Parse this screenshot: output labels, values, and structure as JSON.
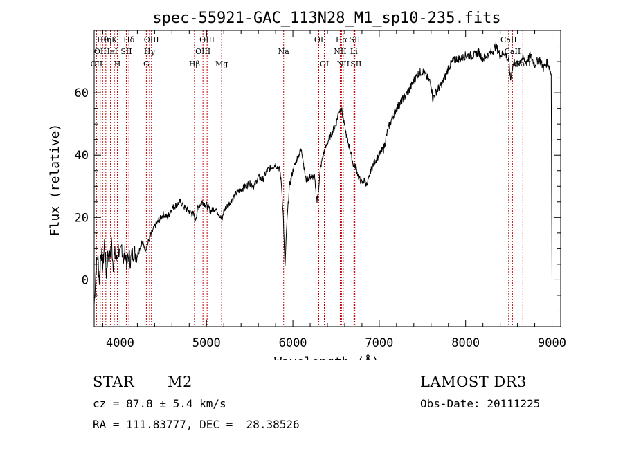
{
  "chart_data": {
    "type": "line",
    "title": "spec-55921-GAC_113N28_M1_sp10-235.fits",
    "xlabel": "Wavelength (Å)",
    "ylabel": "Flux (relative)",
    "xlim": [
      3700,
      9100
    ],
    "ylim": [
      -15,
      80
    ],
    "x_ticks": [
      4000,
      5000,
      6000,
      7000,
      8000,
      9000
    ],
    "y_ticks": [
      0,
      20,
      40,
      60
    ],
    "series": [
      {
        "name": "flux",
        "x": [
          3700,
          3720,
          3740,
          3760,
          3780,
          3800,
          3820,
          3840,
          3860,
          3880,
          3900,
          3920,
          3940,
          3960,
          3980,
          4000,
          4020,
          4040,
          4060,
          4080,
          4100,
          4120,
          4150,
          4200,
          4250,
          4300,
          4350,
          4400,
          4450,
          4500,
          4550,
          4600,
          4650,
          4700,
          4750,
          4800,
          4850,
          4870,
          4900,
          4950,
          5000,
          5050,
          5100,
          5150,
          5180,
          5200,
          5250,
          5300,
          5350,
          5400,
          5450,
          5500,
          5550,
          5600,
          5650,
          5700,
          5750,
          5800,
          5850,
          5870,
          5890,
          5900,
          5910,
          5930,
          5960,
          6000,
          6050,
          6100,
          6120,
          6150,
          6200,
          6250,
          6280,
          6300,
          6320,
          6350,
          6400,
          6450,
          6500,
          6530,
          6563,
          6580,
          6600,
          6630,
          6660,
          6700,
          6730,
          6760,
          6800,
          6830,
          6860,
          6900,
          6950,
          7000,
          7050,
          7100,
          7150,
          7200,
          7250,
          7300,
          7350,
          7400,
          7450,
          7500,
          7550,
          7600,
          7620,
          7650,
          7700,
          7750,
          7800,
          7850,
          7900,
          7950,
          8000,
          8050,
          8100,
          8150,
          8200,
          8250,
          8300,
          8350,
          8400,
          8450,
          8500,
          8520,
          8540,
          8560,
          8600,
          8650,
          8700,
          8750,
          8800,
          8850,
          8900,
          8950,
          8990,
          9000
        ],
        "y": [
          -8,
          3,
          8,
          0,
          10,
          4,
          12,
          2,
          9,
          7,
          12,
          5,
          8,
          6,
          10,
          7,
          11,
          6,
          9,
          5,
          8,
          6,
          9,
          8,
          12,
          10,
          14,
          17,
          19,
          21,
          20,
          23,
          24,
          25,
          23,
          22,
          21,
          19,
          23,
          25,
          24,
          22,
          23,
          21,
          19,
          22,
          24,
          26,
          28,
          29,
          30,
          31,
          30,
          33,
          32,
          35,
          36,
          37,
          35,
          30,
          20,
          10,
          4,
          18,
          30,
          35,
          39,
          42,
          38,
          32,
          33,
          33,
          25,
          30,
          36,
          40,
          44,
          47,
          50,
          54,
          55,
          52,
          49,
          45,
          42,
          37,
          36,
          33,
          31,
          32,
          30,
          35,
          38,
          40,
          42,
          48,
          52,
          55,
          57,
          59,
          61,
          64,
          66,
          67,
          65,
          63,
          58,
          60,
          62,
          64,
          68,
          70,
          71,
          71,
          72,
          72,
          72,
          73,
          71,
          72,
          73,
          75,
          72,
          73,
          70,
          64,
          68,
          70,
          69,
          71,
          70,
          72,
          69,
          71,
          68,
          70,
          66,
          0
        ]
      }
    ],
    "lines": [
      {
        "wl": 3727,
        "row": 2,
        "label": "OII"
      },
      {
        "wl": 3770,
        "row": 1,
        "label": "OII"
      },
      {
        "wl": 3798,
        "row": 0,
        "label": "Hθ"
      },
      {
        "wl": 3835,
        "row": 0,
        "label": "Hη"
      },
      {
        "wl": 3889,
        "row": 1,
        "label": "HeI"
      },
      {
        "wl": 3933,
        "row": 0,
        "label": "K"
      },
      {
        "wl": 3969,
        "row": 2,
        "label": "H"
      },
      {
        "wl": 4072,
        "row": 1,
        "label": "SII"
      },
      {
        "wl": 4102,
        "row": 0,
        "label": "Hδ"
      },
      {
        "wl": 4304,
        "row": 2,
        "label": "G"
      },
      {
        "wl": 4341,
        "row": 1,
        "label": "Hγ"
      },
      {
        "wl": 4363,
        "row": 0,
        "label": "OIII"
      },
      {
        "wl": 4861,
        "row": 2,
        "label": "Hβ"
      },
      {
        "wl": 4959,
        "row": 1,
        "label": "OIII"
      },
      {
        "wl": 5007,
        "row": 0,
        "label": "OIII"
      },
      {
        "wl": 5175,
        "row": 2,
        "label": "Mg"
      },
      {
        "wl": 5893,
        "row": 1,
        "label": "Na"
      },
      {
        "wl": 6300,
        "row": 0,
        "label": "OI"
      },
      {
        "wl": 6364,
        "row": 2,
        "label": "OI"
      },
      {
        "wl": 6548,
        "row": 1,
        "label": "NII"
      },
      {
        "wl": 6563,
        "row": 0,
        "label": "Hα"
      },
      {
        "wl": 6583,
        "row": 2,
        "label": "NII"
      },
      {
        "wl": 6707,
        "row": 1,
        "label": "Li"
      },
      {
        "wl": 6716,
        "row": 0,
        "label": "SII"
      },
      {
        "wl": 6731,
        "row": 2,
        "label": "SII"
      },
      {
        "wl": 8498,
        "row": 0,
        "label": "CaII"
      },
      {
        "wl": 8542,
        "row": 1,
        "label": "CaII"
      },
      {
        "wl": 8662,
        "row": 2,
        "label": "CaII"
      }
    ]
  },
  "info": {
    "class": "STAR",
    "subclass": "M2",
    "survey": "LAMOST DR3",
    "cz": "cz = 87.8 ± 5.4 km/s",
    "obs_date": "Obs-Date: 20111225",
    "coords": "RA = 111.83777, DEC =  28.38526"
  }
}
